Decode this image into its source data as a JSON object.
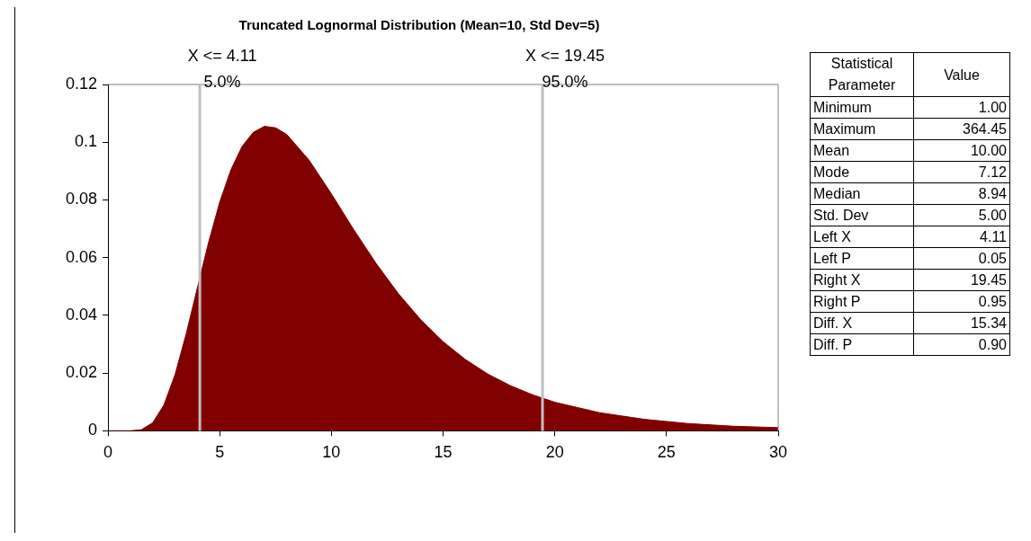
{
  "chart_data": [
    {
      "type": "area",
      "title": "Truncated Lognormal Distribution (Mean=10, Std Dev=5)",
      "x": [
        0,
        1,
        1.5,
        2,
        2.5,
        3,
        3.5,
        4,
        4.5,
        5,
        5.5,
        6,
        6.5,
        7,
        7.5,
        8,
        9,
        10,
        11,
        12,
        13,
        14,
        15,
        16,
        17,
        18,
        19,
        20,
        22,
        24,
        26,
        28,
        30
      ],
      "series": [
        {
          "color": "#800000",
          "values": [
            0,
            0,
            0.0004,
            0.0028,
            0.0089,
            0.0194,
            0.0336,
            0.0495,
            0.0652,
            0.0792,
            0.0904,
            0.0985,
            0.1034,
            0.1055,
            0.105,
            0.1027,
            0.0938,
            0.0821,
            0.0697,
            0.058,
            0.0475,
            0.0385,
            0.0309,
            0.0247,
            0.0197,
            0.0157,
            0.0125,
            0.0099,
            0.0063,
            0.004,
            0.0025,
            0.0016,
            0.0011
          ]
        }
      ],
      "xlim": [
        0,
        30
      ],
      "xticks": [
        0,
        5,
        10,
        15,
        20,
        25,
        30
      ],
      "ylim": [
        0,
        0.12
      ],
      "yticks": [
        0,
        0.02,
        0.04,
        0.06,
        0.08,
        0.1,
        0.12
      ],
      "grid": false,
      "legend": false,
      "ref_lines": [
        {
          "axis": "x",
          "value": 4.11,
          "label": "X <= 4.11",
          "color": "#c0c0c0"
        },
        {
          "axis": "x",
          "value": 19.45,
          "label": "X <= 19.45",
          "color": "#c0c0c0"
        }
      ],
      "annotations": [
        {
          "text": "5.0%",
          "x": 4.11,
          "y": 0.12
        },
        {
          "text": "95.0%",
          "x": 19.45,
          "y": 0.12
        }
      ]
    },
    {
      "type": "other",
      "categories": [
        "Minimum",
        "Maximum",
        "Mean",
        "Mode",
        "Median",
        "Std. Dev",
        "Left X",
        "Left P",
        "Right X",
        "Right P",
        "Diff. X",
        "Diff. P"
      ],
      "value_labels": [
        "1.00",
        "364.45",
        "10.00",
        "7.12",
        "8.94",
        "5.00",
        "4.11",
        "0.05",
        "19.45",
        "0.95",
        "15.34",
        "0.90"
      ],
      "annotations": [
        "Statistical Parameter",
        "Value"
      ]
    }
  ]
}
